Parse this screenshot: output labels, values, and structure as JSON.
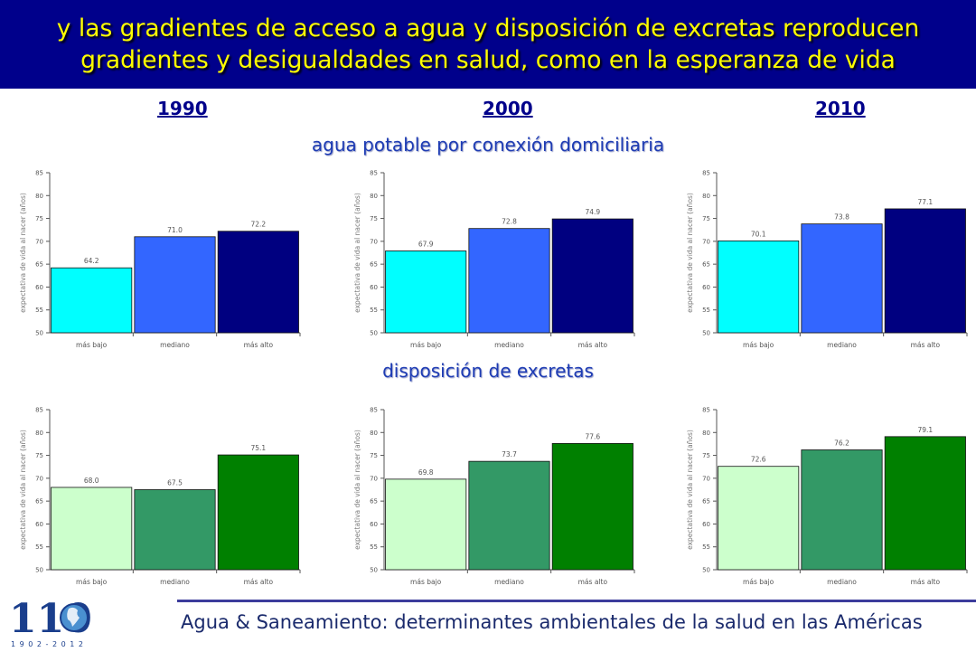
{
  "banner": {
    "line1": "y las gradientes de acceso a agua y disposición de excretas reproducen",
    "line2": "gradientes y desigualdades en salud, como en la esperanza de vida"
  },
  "years": [
    "1990",
    "2000",
    "2010"
  ],
  "sections": {
    "water": "agua potable por conexión domiciliaria",
    "excreta": "disposición de excretas"
  },
  "footer": "Agua & Saneamiento: determinantes ambientales de la salud en las Américas",
  "logo": {
    "number": "110",
    "years": "1 9 0 2 - 2 0 1 2"
  },
  "colors": {
    "banner_bg": "#00008b",
    "banner_text": "#ffff00",
    "water": [
      "#00ffff",
      "#3366ff",
      "#000080"
    ],
    "excreta": [
      "#ccffcc",
      "#339966",
      "#008000"
    ]
  },
  "chart_data": [
    {
      "type": "bar",
      "title": "",
      "xlabel": "",
      "ylabel": "expectativa de vida al nacer (años)",
      "categories": [
        "más bajo",
        "mediano",
        "más alto"
      ],
      "values": [
        64.2,
        71.0,
        72.2
      ],
      "value_labels": [
        "64.2",
        "71.0",
        "72.2"
      ],
      "ylim": [
        50,
        85
      ],
      "yticks": [
        50,
        55,
        60,
        65,
        70,
        75,
        80,
        85
      ],
      "colors": [
        "#00ffff",
        "#3366ff",
        "#000080"
      ]
    },
    {
      "type": "bar",
      "title": "",
      "xlabel": "",
      "ylabel": "expectativa de vida al nacer (años)",
      "categories": [
        "más bajo",
        "mediano",
        "más alto"
      ],
      "values": [
        67.9,
        72.8,
        74.9
      ],
      "value_labels": [
        "67.9",
        "72.8",
        "74.9"
      ],
      "ylim": [
        50,
        85
      ],
      "yticks": [
        50,
        55,
        60,
        65,
        70,
        75,
        80,
        85
      ],
      "colors": [
        "#00ffff",
        "#3366ff",
        "#000080"
      ]
    },
    {
      "type": "bar",
      "title": "",
      "xlabel": "",
      "ylabel": "expectativa de vida al nacer (años)",
      "categories": [
        "más bajo",
        "mediano",
        "más alto"
      ],
      "values": [
        70.1,
        73.8,
        77.1
      ],
      "value_labels": [
        "70.1",
        "73.8",
        "77.1"
      ],
      "ylim": [
        50,
        85
      ],
      "yticks": [
        50,
        55,
        60,
        65,
        70,
        75,
        80,
        85
      ],
      "colors": [
        "#00ffff",
        "#3366ff",
        "#000080"
      ]
    },
    {
      "type": "bar",
      "title": "",
      "xlabel": "",
      "ylabel": "expectativa de vida al nacer (años)",
      "categories": [
        "más bajo",
        "mediano",
        "más alto"
      ],
      "values": [
        68.0,
        67.5,
        75.1
      ],
      "value_labels": [
        "68.0",
        "67.5",
        "75.1"
      ],
      "ylim": [
        50,
        85
      ],
      "yticks": [
        50,
        55,
        60,
        65,
        70,
        75,
        80,
        85
      ],
      "colors": [
        "#ccffcc",
        "#339966",
        "#008000"
      ]
    },
    {
      "type": "bar",
      "title": "",
      "xlabel": "",
      "ylabel": "expectativa de vida al nacer (años)",
      "categories": [
        "más bajo",
        "mediano",
        "más alto"
      ],
      "values": [
        69.8,
        73.7,
        77.6
      ],
      "value_labels": [
        "69.8",
        "73.7",
        "77.6"
      ],
      "ylim": [
        50,
        85
      ],
      "yticks": [
        50,
        55,
        60,
        65,
        70,
        75,
        80,
        85
      ],
      "colors": [
        "#ccffcc",
        "#339966",
        "#008000"
      ]
    },
    {
      "type": "bar",
      "title": "",
      "xlabel": "",
      "ylabel": "expectativa de vida al nacer (años)",
      "categories": [
        "más bajo",
        "mediano",
        "más alto"
      ],
      "values": [
        72.6,
        76.2,
        79.1
      ],
      "value_labels": [
        "72.6",
        "76.2",
        "79.1"
      ],
      "ylim": [
        50,
        85
      ],
      "yticks": [
        50,
        55,
        60,
        65,
        70,
        75,
        80,
        85
      ],
      "colors": [
        "#ccffcc",
        "#339966",
        "#008000"
      ]
    }
  ]
}
